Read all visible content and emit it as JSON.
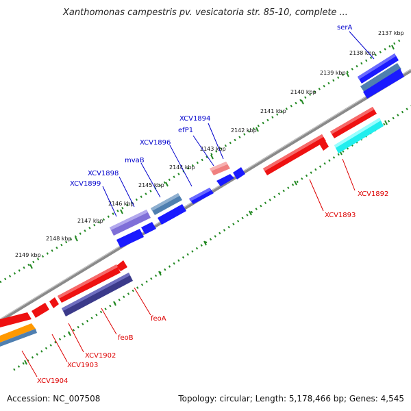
{
  "title": "Xanthomonas campestris pv. vesicatoria str. 85-10, complete ...",
  "footer": {
    "accession": "Accession: NC_007508",
    "topology": "Topology: circular; Length: 5,178,466 bp; Genes: 4,545"
  },
  "ticks": [
    "2137 kbp",
    "2138 kbp",
    "2139 kbp",
    "2140 kbp",
    "2141 kbp",
    "2142 kbp",
    "2143 kbp",
    "2144 kbp",
    "2145 kbp",
    "2146 kbp",
    "2147 kbp",
    "2148 kbp",
    "2149 kbp"
  ],
  "gene_labels": {
    "serA": "serA",
    "XCV1894": "XCV1894",
    "efP1": "efP1",
    "XCV1896": "XCV1896",
    "mvaB": "mvaB",
    "XCV1898": "XCV1898",
    "XCV1899": "XCV1899",
    "XCV1892": "XCV1892",
    "XCV1893": "XCV1893",
    "feoA": "feoA",
    "feoB": "feoB",
    "XCV1902": "XCV1902",
    "XCV1903": "XCV1903",
    "XCV1904": "XCV1904"
  },
  "colors": {
    "forward": "#1a1aff",
    "forward_steel": "#4f7fb0",
    "forward_violet": "#7f6fd8",
    "reverse": "#ee1111",
    "reverse_pink": "#f08080",
    "reverse_cyan": "#22eeee",
    "reverse_indigo": "#3b3a8a",
    "reverse_orange": "#ff9900",
    "backbone": "#8a8a8a",
    "ticks": "#228822",
    "label_forward": "#0000cc",
    "label_reverse": "#dd0000"
  }
}
